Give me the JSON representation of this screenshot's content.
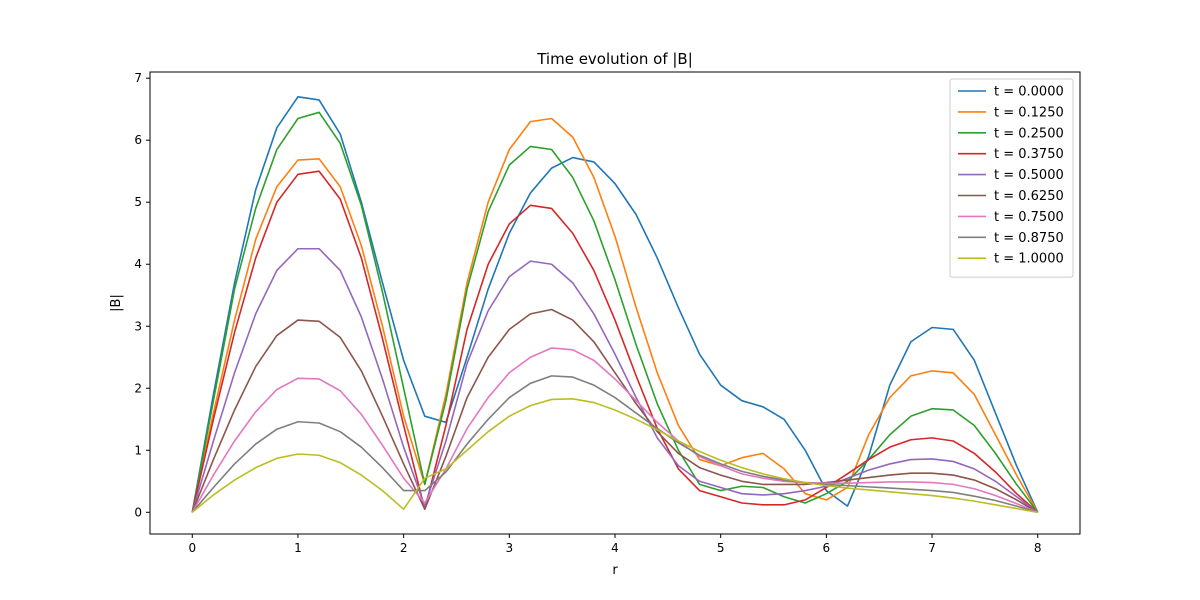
{
  "chart_data": {
    "type": "line",
    "title": "Time evolution of |B|",
    "xlabel": "r",
    "ylabel": "|B|",
    "xlim": [
      -0.4,
      8.4
    ],
    "ylim": [
      -0.35,
      7.1
    ],
    "xticks": [
      0,
      1,
      2,
      3,
      4,
      5,
      6,
      7,
      8
    ],
    "yticks": [
      0,
      1,
      2,
      3,
      4,
      5,
      6,
      7
    ],
    "grid": false,
    "legend_position": "top-right",
    "x": [
      0,
      0.2,
      0.4,
      0.6,
      0.8,
      1.0,
      1.2,
      1.4,
      1.6,
      1.8,
      2.0,
      2.2,
      2.4,
      2.6,
      2.8,
      3.0,
      3.2,
      3.4,
      3.6,
      3.8,
      4.0,
      4.2,
      4.4,
      4.6,
      4.8,
      5.0,
      5.2,
      5.4,
      5.6,
      5.8,
      6.0,
      6.2,
      6.4,
      6.6,
      6.8,
      7.0,
      7.2,
      7.4,
      7.6,
      7.8,
      8.0
    ],
    "series": [
      {
        "name": "t = 0.0000",
        "color": "#1f77b4",
        "values": [
          0.0,
          1.9,
          3.7,
          5.2,
          6.2,
          6.7,
          6.65,
          6.1,
          5.0,
          3.7,
          2.45,
          1.55,
          1.45,
          2.5,
          3.6,
          4.5,
          5.15,
          5.55,
          5.72,
          5.65,
          5.3,
          4.8,
          4.1,
          3.3,
          2.55,
          2.05,
          1.8,
          1.7,
          1.5,
          1.0,
          0.35,
          0.1,
          0.9,
          2.05,
          2.75,
          2.98,
          2.95,
          2.45,
          1.6,
          0.75,
          0.0
        ]
      },
      {
        "name": "t = 0.1250",
        "color": "#ff7f0e",
        "values": [
          0.0,
          1.6,
          3.1,
          4.4,
          5.25,
          5.68,
          5.7,
          5.25,
          4.3,
          3.0,
          1.55,
          0.45,
          1.9,
          3.7,
          5.0,
          5.85,
          6.3,
          6.35,
          6.05,
          5.4,
          4.45,
          3.3,
          2.25,
          1.4,
          0.85,
          0.75,
          0.88,
          0.95,
          0.7,
          0.3,
          0.2,
          0.4,
          1.25,
          1.85,
          2.2,
          2.28,
          2.25,
          1.9,
          1.25,
          0.6,
          0.0
        ]
      },
      {
        "name": "t = 0.2500",
        "color": "#2ca02c",
        "values": [
          0.0,
          1.8,
          3.6,
          4.9,
          5.85,
          6.35,
          6.45,
          5.95,
          4.95,
          3.55,
          2.0,
          0.45,
          1.8,
          3.6,
          4.85,
          5.6,
          5.9,
          5.85,
          5.4,
          4.7,
          3.75,
          2.7,
          1.75,
          1.0,
          0.45,
          0.35,
          0.42,
          0.4,
          0.25,
          0.15,
          0.3,
          0.5,
          0.85,
          1.25,
          1.55,
          1.67,
          1.65,
          1.4,
          0.95,
          0.45,
          0.0
        ]
      },
      {
        "name": "t = 0.3750",
        "color": "#d62728",
        "values": [
          0.0,
          1.5,
          2.9,
          4.1,
          5.0,
          5.45,
          5.5,
          5.05,
          4.1,
          2.8,
          1.4,
          0.05,
          1.4,
          2.95,
          4.0,
          4.65,
          4.95,
          4.9,
          4.5,
          3.9,
          3.1,
          2.2,
          1.35,
          0.7,
          0.35,
          0.25,
          0.15,
          0.12,
          0.12,
          0.2,
          0.4,
          0.62,
          0.85,
          1.05,
          1.17,
          1.2,
          1.15,
          0.95,
          0.65,
          0.3,
          0.0
        ]
      },
      {
        "name": "t = 0.5000",
        "color": "#9467bd",
        "values": [
          0.0,
          1.15,
          2.25,
          3.2,
          3.9,
          4.25,
          4.25,
          3.9,
          3.15,
          2.15,
          1.05,
          0.1,
          1.15,
          2.4,
          3.25,
          3.8,
          4.05,
          4.0,
          3.7,
          3.2,
          2.55,
          1.85,
          1.2,
          0.75,
          0.5,
          0.4,
          0.3,
          0.28,
          0.3,
          0.35,
          0.42,
          0.55,
          0.68,
          0.78,
          0.85,
          0.86,
          0.82,
          0.7,
          0.5,
          0.25,
          0.0
        ]
      },
      {
        "name": "t = 0.6250",
        "color": "#8c564b",
        "values": [
          0.0,
          0.85,
          1.65,
          2.35,
          2.85,
          3.1,
          3.08,
          2.82,
          2.28,
          1.55,
          0.78,
          0.05,
          0.9,
          1.85,
          2.5,
          2.95,
          3.2,
          3.27,
          3.1,
          2.75,
          2.25,
          1.75,
          1.3,
          0.95,
          0.72,
          0.6,
          0.5,
          0.45,
          0.45,
          0.45,
          0.48,
          0.52,
          0.56,
          0.6,
          0.63,
          0.63,
          0.6,
          0.52,
          0.38,
          0.2,
          0.0
        ]
      },
      {
        "name": "t = 0.7500",
        "color": "#e377c2",
        "values": [
          0.0,
          0.6,
          1.15,
          1.62,
          1.98,
          2.16,
          2.15,
          1.96,
          1.58,
          1.08,
          0.55,
          0.15,
          0.7,
          1.35,
          1.85,
          2.25,
          2.5,
          2.65,
          2.62,
          2.45,
          2.15,
          1.8,
          1.45,
          1.15,
          0.9,
          0.75,
          0.62,
          0.55,
          0.5,
          0.48,
          0.47,
          0.47,
          0.48,
          0.49,
          0.49,
          0.48,
          0.45,
          0.38,
          0.27,
          0.14,
          0.0
        ]
      },
      {
        "name": "t = 0.8750",
        "color": "#7f7f7f",
        "values": [
          0.0,
          0.4,
          0.78,
          1.1,
          1.34,
          1.46,
          1.44,
          1.3,
          1.05,
          0.72,
          0.35,
          0.35,
          0.65,
          1.1,
          1.5,
          1.85,
          2.08,
          2.2,
          2.18,
          2.05,
          1.85,
          1.6,
          1.35,
          1.12,
          0.92,
          0.78,
          0.66,
          0.58,
          0.52,
          0.48,
          0.45,
          0.43,
          0.41,
          0.39,
          0.37,
          0.35,
          0.32,
          0.26,
          0.19,
          0.1,
          0.0
        ]
      },
      {
        "name": "t = 1.0000",
        "color": "#bcbd22",
        "values": [
          0.0,
          0.28,
          0.52,
          0.72,
          0.87,
          0.94,
          0.92,
          0.8,
          0.6,
          0.35,
          0.05,
          0.55,
          0.7,
          1.0,
          1.3,
          1.55,
          1.72,
          1.82,
          1.83,
          1.77,
          1.65,
          1.5,
          1.33,
          1.15,
          0.98,
          0.84,
          0.72,
          0.62,
          0.54,
          0.48,
          0.43,
          0.39,
          0.36,
          0.33,
          0.3,
          0.27,
          0.23,
          0.18,
          0.12,
          0.06,
          0.0
        ]
      }
    ]
  }
}
